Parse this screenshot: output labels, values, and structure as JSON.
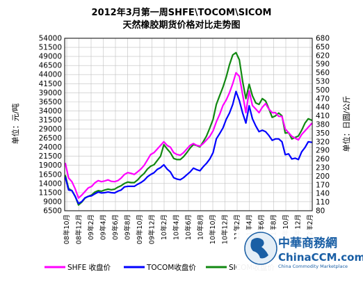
{
  "chart_data": {
    "type": "line",
    "title": "2012年3月第一周SHFE\\TOCOM\\SICOM",
    "subtitle": "天然橡胶期货价格对比走势图",
    "ylabel_left": "单位：元/吨",
    "ylabel_right": "单位：日圆/公斤",
    "grid": true,
    "legend_position": "bottom",
    "y_left": {
      "ylim": [
        6500,
        54000
      ],
      "ticks": [
        "6500",
        "9000",
        "11500",
        "14000",
        "16500",
        "19000",
        "21500",
        "24000",
        "26500",
        "29000",
        "31500",
        "34000",
        "36500",
        "39000",
        "41500",
        "44000",
        "46500",
        "49000",
        "51500",
        "54000"
      ]
    },
    "y_right": {
      "ylim": [
        80,
        680
      ],
      "ticks": [
        "80",
        "110",
        "140",
        "170",
        "200",
        "230",
        "260",
        "290",
        "320",
        "350",
        "380",
        "410",
        "440",
        "470",
        "500",
        "530",
        "560",
        "590",
        "620",
        "650",
        "680"
      ]
    },
    "x_ticks": [
      "08年10月",
      "08年12月",
      "09年2月",
      "09年4月",
      "09年6月",
      "09年8月",
      "09年10月",
      "09年12月",
      "10年2月",
      "10年4月",
      "10年6月",
      "10年8月",
      "10年10月",
      "10年12月",
      "11年2月",
      "11年4月",
      "11年6月",
      "11年8月",
      "11年10月",
      "11年12月",
      "12年2月"
    ],
    "series": [
      {
        "name": "SHFE 收盘价",
        "axis": "left",
        "color": "#ff00ff",
        "values": [
          19500,
          15500,
          14500,
          12500,
          10000,
          10800,
          11800,
          12800,
          13200,
          14200,
          14800,
          14500,
          14700,
          15000,
          14600,
          14500,
          14800,
          15500,
          16500,
          17000,
          16800,
          16500,
          17200,
          18000,
          19000,
          20500,
          22000,
          22500,
          23500,
          24500,
          25500,
          24500,
          24000,
          22500,
          22000,
          21800,
          22500,
          23500,
          24500,
          25000,
          24500,
          24300,
          25000,
          26000,
          27000,
          28500,
          31000,
          33000,
          35500,
          37000,
          39000,
          41500,
          44500,
          43500,
          38500,
          33500,
          39500,
          35500,
          34500,
          33500,
          35000,
          36000,
          34500,
          33500,
          33500,
          32500,
          32500,
          29000,
          28000,
          27000,
          26500,
          26000,
          27500,
          28500,
          29500,
          30500
        ]
      },
      {
        "name": "TOCOM收盘价",
        "axis": "right",
        "color": "#0000ff",
        "values": [
          196,
          152,
          150,
          129,
          105,
          112,
          125,
          130,
          132,
          139,
          145,
          142,
          143,
          145,
          143,
          142,
          148,
          152,
          163,
          165,
          165,
          165,
          172,
          178,
          186,
          198,
          206,
          212,
          224,
          230,
          240,
          225,
          215,
          195,
          190,
          188,
          195,
          205,
          215,
          228,
          223,
          219,
          233,
          245,
          260,
          282,
          330,
          348,
          368,
          398,
          420,
          450,
          495,
          463,
          420,
          385,
          445,
          400,
          375,
          355,
          360,
          355,
          342,
          325,
          330,
          330,
          320,
          275,
          278,
          260,
          263,
          258,
          285,
          300,
          320,
          318
        ]
      },
      {
        "name": "SICOM收盘价",
        "axis": "right",
        "color": "#118811",
        "values": [
          202,
          157,
          150,
          130,
          100,
          110,
          124,
          130,
          135,
          145,
          150,
          148,
          152,
          155,
          153,
          155,
          162,
          167,
          175,
          180,
          178,
          178,
          187,
          200,
          210,
          225,
          235,
          240,
          255,
          270,
          310,
          295,
          282,
          262,
          258,
          258,
          268,
          282,
          298,
          310,
          307,
          302,
          320,
          340,
          368,
          398,
          450,
          480,
          510,
          545,
          588,
          622,
          630,
          605,
          530,
          470,
          520,
          480,
          455,
          450,
          470,
          462,
          435,
          405,
          410,
          420,
          410,
          350,
          352,
          330,
          335,
          340,
          360,
          385,
          400,
          395
        ]
      }
    ]
  },
  "watermark": {
    "name_cn": "中華商務網",
    "name_en": "ChinaCCM.com",
    "tagline": "China Commodity Marketplace",
    "color": "#1a5fa5"
  }
}
